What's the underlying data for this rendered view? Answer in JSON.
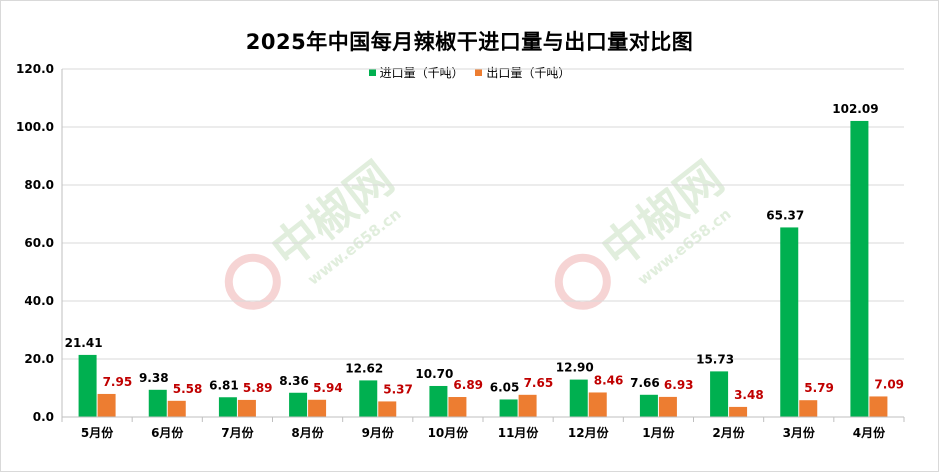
{
  "chart_data": {
    "type": "bar",
    "title": "2025年中国每月辣椒干进口量与出口量对比图",
    "categories": [
      "5月份",
      "6月份",
      "7月份",
      "8月份",
      "9月份",
      "10月份",
      "11月份",
      "12月份",
      "1月份",
      "2月份",
      "3月份",
      "4月份"
    ],
    "series": [
      {
        "name": "进口量（千吨）",
        "color": "#00b050",
        "label_color": "#000000",
        "values": [
          21.41,
          9.38,
          6.81,
          8.36,
          12.62,
          10.7,
          6.05,
          12.9,
          7.66,
          15.73,
          65.37,
          102.09
        ],
        "labels": [
          "21.41",
          "9.38",
          "6.81",
          "8.36",
          "12.62",
          "10.70",
          "6.05",
          "12.90",
          "7.66",
          "15.73",
          "65.37",
          "102.09"
        ]
      },
      {
        "name": "出口量（千吨）",
        "color": "#ed7d31",
        "label_color": "#c00000",
        "values": [
          7.95,
          5.58,
          5.89,
          5.94,
          5.37,
          6.89,
          7.65,
          8.46,
          6.93,
          3.48,
          5.79,
          7.09
        ],
        "labels": [
          "7.95",
          "5.58",
          "5.89",
          "5.94",
          "5.37",
          "6.89",
          "7.65",
          "8.46",
          "6.93",
          "3.48",
          "5.79",
          "7.09"
        ]
      }
    ],
    "ylim": [
      0,
      120
    ],
    "yticks": [
      "0.0",
      "20.0",
      "40.0",
      "60.0",
      "80.0",
      "100.0",
      "120.0"
    ],
    "grid": true,
    "legend_position": "top-center"
  },
  "watermark": {
    "text": "中椒网",
    "url": "www.e658.cn",
    "color": "#e1eedd"
  }
}
